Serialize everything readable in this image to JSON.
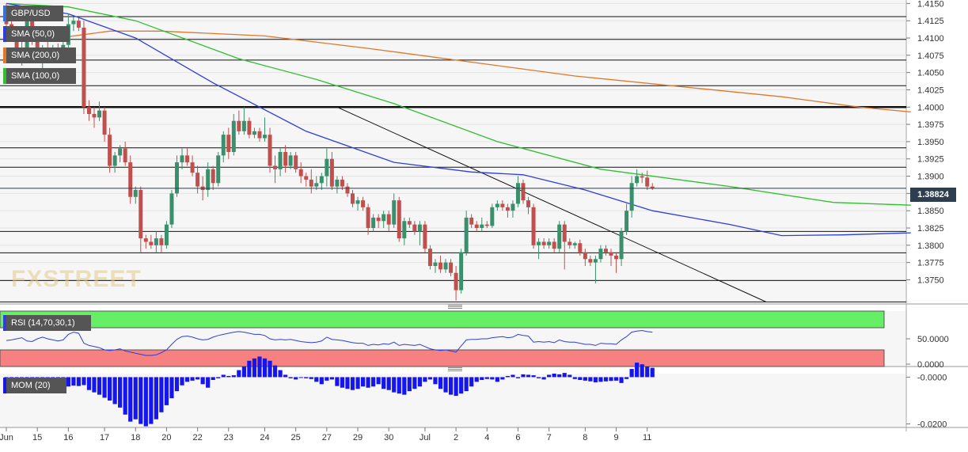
{
  "symbol": "GBP/USD",
  "legends": {
    "sma50": "SMA (50,0)",
    "sma200": "SMA (200,0)",
    "sma100": "SMA (100,0)",
    "rsi": "RSI (14,70,30,1)",
    "mom": "MOM (20)"
  },
  "watermark": "FXSTREET",
  "last_price": "1.38824",
  "colors": {
    "up": "#3a8f6c",
    "down": "#c0504d",
    "sma50": "#2f3ed9",
    "sma100": "#2fbf2f",
    "sma200": "#e0772a",
    "rsi_line": "#2f3ed9",
    "rsi_over": "#66ee66",
    "rsi_under": "#f78080",
    "mom_bar": "#1515ee",
    "badge": "#2c3e50"
  },
  "chart_data": [
    {
      "type": "candlestick",
      "title": "GBP/USD",
      "y_ticks": [
        "1.4150",
        "1.4125",
        "1.4100",
        "1.4075",
        "1.4050",
        "1.4025",
        "1.4000",
        "1.3975",
        "1.3950",
        "1.3925",
        "1.3900",
        "1.3875",
        "1.3850",
        "1.3825",
        "1.3800",
        "1.3775",
        "1.3750"
      ],
      "ylim": [
        1.3715,
        1.4155
      ],
      "x_ticks": [
        "Jun",
        "15",
        "16",
        "17",
        "18",
        "20",
        "22",
        "23",
        "24",
        "25",
        "27",
        "29",
        "30",
        "Jul",
        "2",
        "4",
        "6",
        "7",
        "8",
        "9",
        "11"
      ],
      "horizontal_levels": [
        1.4131,
        1.4098,
        1.4068,
        1.4031,
        1.4,
        1.3941,
        1.3913,
        1.382,
        1.3789,
        1.3749,
        1.3718
      ],
      "trend_line": [
        [
          1.4,
          64
        ],
        [
          1.3718,
          147
        ]
      ],
      "last_price": 1.38824,
      "candles_ohlc": [
        [
          1.4131,
          1.415,
          1.4105,
          1.412
        ],
        [
          1.412,
          1.413,
          1.4095,
          1.4102
        ],
        [
          1.4102,
          1.4115,
          1.408,
          1.4085
        ],
        [
          1.4085,
          1.41,
          1.406,
          1.4075
        ],
        [
          1.4075,
          1.414,
          1.407,
          1.413
        ],
        [
          1.413,
          1.414,
          1.409,
          1.4095
        ],
        [
          1.4095,
          1.41,
          1.4065,
          1.4075
        ],
        [
          1.4075,
          1.409,
          1.405,
          1.4085
        ],
        [
          1.4085,
          1.4095,
          1.4075,
          1.408
        ],
        [
          1.408,
          1.409,
          1.407,
          1.4083
        ],
        [
          1.4083,
          1.4092,
          1.4075,
          1.4078
        ],
        [
          1.4078,
          1.4095,
          1.407,
          1.409
        ],
        [
          1.409,
          1.4135,
          1.4085,
          1.412
        ],
        [
          1.412,
          1.413,
          1.411,
          1.4125
        ],
        [
          1.4125,
          1.413,
          1.411,
          1.4115
        ],
        [
          1.4115,
          1.4125,
          1.399,
          1.4
        ],
        [
          1.4,
          1.401,
          1.398,
          1.399
        ],
        [
          1.399,
          1.4,
          1.397,
          1.3985
        ],
        [
          1.3985,
          1.4008,
          1.398,
          1.3995
        ],
        [
          1.3995,
          1.4,
          1.395,
          1.396
        ],
        [
          1.396,
          1.397,
          1.3905,
          1.3915
        ],
        [
          1.3915,
          1.3935,
          1.3905,
          1.393
        ],
        [
          1.393,
          1.3945,
          1.392,
          1.394
        ],
        [
          1.394,
          1.395,
          1.3915,
          1.392
        ],
        [
          1.392,
          1.393,
          1.386,
          1.387
        ],
        [
          1.387,
          1.3885,
          1.386,
          1.388
        ],
        [
          1.388,
          1.3885,
          1.379,
          1.381
        ],
        [
          1.381,
          1.3815,
          1.3795,
          1.3805
        ],
        [
          1.3805,
          1.3815,
          1.3795,
          1.38
        ],
        [
          1.38,
          1.382,
          1.379,
          1.381
        ],
        [
          1.381,
          1.3815,
          1.379,
          1.38
        ],
        [
          1.38,
          1.3835,
          1.3795,
          1.383
        ],
        [
          1.383,
          1.388,
          1.3825,
          1.3875
        ],
        [
          1.3875,
          1.393,
          1.387,
          1.392
        ],
        [
          1.392,
          1.394,
          1.391,
          1.393
        ],
        [
          1.393,
          1.394,
          1.3915,
          1.392
        ],
        [
          1.392,
          1.393,
          1.39,
          1.3905
        ],
        [
          1.3905,
          1.3915,
          1.3875,
          1.3885
        ],
        [
          1.3885,
          1.39,
          1.3865,
          1.388
        ],
        [
          1.388,
          1.392,
          1.387,
          1.391
        ],
        [
          1.391,
          1.3915,
          1.388,
          1.389
        ],
        [
          1.389,
          1.3935,
          1.3885,
          1.393
        ],
        [
          1.393,
          1.3965,
          1.392,
          1.396
        ],
        [
          1.396,
          1.397,
          1.3925,
          1.3935
        ],
        [
          1.3935,
          1.399,
          1.393,
          1.398
        ],
        [
          1.398,
          1.3995,
          1.396,
          1.3965
        ],
        [
          1.3965,
          1.4,
          1.396,
          1.398
        ],
        [
          1.398,
          1.3985,
          1.3955,
          1.396
        ],
        [
          1.396,
          1.397,
          1.3955,
          1.3965
        ],
        [
          1.3965,
          1.397,
          1.395,
          1.3955
        ],
        [
          1.3955,
          1.3985,
          1.395,
          1.396
        ],
        [
          1.396,
          1.397,
          1.3905,
          1.3915
        ],
        [
          1.3915,
          1.393,
          1.389,
          1.391
        ],
        [
          1.391,
          1.394,
          1.39,
          1.3935
        ],
        [
          1.3935,
          1.3945,
          1.3905,
          1.3915
        ],
        [
          1.3915,
          1.3935,
          1.391,
          1.393
        ],
        [
          1.393,
          1.3935,
          1.3905,
          1.391
        ],
        [
          1.391,
          1.392,
          1.389,
          1.39
        ],
        [
          1.39,
          1.3905,
          1.3885,
          1.3895
        ],
        [
          1.3895,
          1.391,
          1.3875,
          1.3885
        ],
        [
          1.3885,
          1.39,
          1.388,
          1.389
        ],
        [
          1.389,
          1.3905,
          1.388,
          1.39
        ],
        [
          1.39,
          1.394,
          1.3885,
          1.3925
        ],
        [
          1.3925,
          1.3935,
          1.388,
          1.3885
        ],
        [
          1.3885,
          1.39,
          1.3875,
          1.3895
        ],
        [
          1.3895,
          1.39,
          1.388,
          1.3885
        ],
        [
          1.3885,
          1.389,
          1.387,
          1.3875
        ],
        [
          1.3875,
          1.388,
          1.3855,
          1.386
        ],
        [
          1.386,
          1.387,
          1.385,
          1.3865
        ],
        [
          1.3865,
          1.387,
          1.385,
          1.3855
        ],
        [
          1.3855,
          1.386,
          1.3815,
          1.3825
        ],
        [
          1.3825,
          1.3845,
          1.382,
          1.384
        ],
        [
          1.384,
          1.3845,
          1.3825,
          1.3835
        ],
        [
          1.3835,
          1.385,
          1.3825,
          1.3845
        ],
        [
          1.3845,
          1.385,
          1.382,
          1.383
        ],
        [
          1.383,
          1.3875,
          1.3825,
          1.3865
        ],
        [
          1.3865,
          1.387,
          1.3805,
          1.381
        ],
        [
          1.381,
          1.384,
          1.38,
          1.3835
        ],
        [
          1.3835,
          1.384,
          1.3825,
          1.383
        ],
        [
          1.383,
          1.3835,
          1.3815,
          1.382
        ],
        [
          1.382,
          1.3835,
          1.38,
          1.383
        ],
        [
          1.383,
          1.3835,
          1.379,
          1.3795
        ],
        [
          1.3795,
          1.38,
          1.3765,
          1.377
        ],
        [
          1.377,
          1.378,
          1.376,
          1.3775
        ],
        [
          1.3775,
          1.3785,
          1.376,
          1.3765
        ],
        [
          1.3765,
          1.378,
          1.376,
          1.3775
        ],
        [
          1.3775,
          1.378,
          1.3755,
          1.376
        ],
        [
          1.376,
          1.377,
          1.372,
          1.3735
        ],
        [
          1.3735,
          1.3795,
          1.373,
          1.379
        ],
        [
          1.379,
          1.385,
          1.3785,
          1.384
        ],
        [
          1.384,
          1.3845,
          1.3825,
          1.383
        ],
        [
          1.383,
          1.3835,
          1.382,
          1.3825
        ],
        [
          1.3825,
          1.384,
          1.382,
          1.383
        ],
        [
          1.383,
          1.3835,
          1.3825,
          1.3828
        ],
        [
          1.3828,
          1.386,
          1.3825,
          1.3855
        ],
        [
          1.3855,
          1.3865,
          1.385,
          1.386
        ],
        [
          1.386,
          1.3865,
          1.385,
          1.3855
        ],
        [
          1.3855,
          1.386,
          1.384,
          1.385
        ],
        [
          1.385,
          1.3865,
          1.384,
          1.386
        ],
        [
          1.386,
          1.39,
          1.3855,
          1.389
        ],
        [
          1.389,
          1.3895,
          1.386,
          1.3865
        ],
        [
          1.3865,
          1.387,
          1.3845,
          1.3855
        ],
        [
          1.3855,
          1.386,
          1.3795,
          1.38
        ],
        [
          1.38,
          1.381,
          1.378,
          1.3805
        ],
        [
          1.3805,
          1.381,
          1.3795,
          1.38
        ],
        [
          1.38,
          1.381,
          1.3795,
          1.3805
        ],
        [
          1.3805,
          1.381,
          1.379,
          1.3795
        ],
        [
          1.3795,
          1.3835,
          1.379,
          1.383
        ],
        [
          1.383,
          1.3835,
          1.3765,
          1.3805
        ],
        [
          1.3805,
          1.381,
          1.3795,
          1.38
        ],
        [
          1.38,
          1.3805,
          1.3795,
          1.3803
        ],
        [
          1.3803,
          1.3808,
          1.3785,
          1.379
        ],
        [
          1.379,
          1.3795,
          1.377,
          1.378
        ],
        [
          1.378,
          1.3785,
          1.377,
          1.3775
        ],
        [
          1.3775,
          1.3785,
          1.3745,
          1.378
        ],
        [
          1.378,
          1.38,
          1.3775,
          1.3795
        ],
        [
          1.3795,
          1.38,
          1.3785,
          1.379
        ],
        [
          1.379,
          1.3795,
          1.377,
          1.3785
        ],
        [
          1.3785,
          1.379,
          1.376,
          1.378
        ],
        [
          1.378,
          1.3825,
          1.377,
          1.382
        ],
        [
          1.382,
          1.386,
          1.3815,
          1.385
        ],
        [
          1.385,
          1.39,
          1.384,
          1.389
        ],
        [
          1.389,
          1.391,
          1.3885,
          1.39
        ],
        [
          1.39,
          1.3905,
          1.389,
          1.3898
        ],
        [
          1.3898,
          1.3908,
          1.388,
          1.3885
        ],
        [
          1.3885,
          1.389,
          1.388,
          1.38824
        ]
      ],
      "sma50": [
        [
          0,
          1.415
        ],
        [
          12,
          1.4135
        ],
        [
          25,
          1.41
        ],
        [
          40,
          1.4035
        ],
        [
          58,
          1.3965
        ],
        [
          75,
          1.392
        ],
        [
          90,
          1.3906
        ],
        [
          100,
          1.3902
        ],
        [
          112,
          1.388
        ],
        [
          125,
          1.385
        ],
        [
          140,
          1.383
        ],
        [
          150,
          1.3814
        ],
        [
          162,
          1.3815
        ],
        [
          175,
          1.3818
        ]
      ],
      "sma100": [
        [
          0,
          1.415
        ],
        [
          12,
          1.4145
        ],
        [
          25,
          1.4125
        ],
        [
          45,
          1.407
        ],
        [
          60,
          1.404
        ],
        [
          75,
          1.4005
        ],
        [
          95,
          1.395
        ],
        [
          115,
          1.391
        ],
        [
          140,
          1.3885
        ],
        [
          160,
          1.3862
        ],
        [
          175,
          1.3858
        ]
      ],
      "sma200": [
        [
          0,
          1.41
        ],
        [
          12,
          1.4102
        ],
        [
          20,
          1.411
        ],
        [
          30,
          1.411
        ],
        [
          50,
          1.4103
        ],
        [
          70,
          1.4085
        ],
        [
          90,
          1.4065
        ],
        [
          110,
          1.4045
        ],
        [
          130,
          1.403
        ],
        [
          150,
          1.4015
        ],
        [
          165,
          1.4
        ],
        [
          175,
          1.3993
        ]
      ]
    },
    {
      "type": "line",
      "title": "RSI (14,70,30,1)",
      "y_ticks": [
        "50.0000",
        "0.0000"
      ],
      "zones": {
        "overbought": 70,
        "oversold": 30
      },
      "values": [
        47,
        48,
        50,
        52,
        46,
        45,
        50,
        53,
        50,
        48,
        46,
        48,
        58,
        62,
        60,
        42,
        38,
        36,
        34,
        30,
        29,
        30,
        32,
        28,
        26,
        24,
        22,
        20,
        20,
        21,
        25,
        30,
        40,
        49,
        54,
        55,
        53,
        50,
        48,
        49,
        53,
        56,
        58,
        60,
        62,
        63,
        62,
        60,
        58,
        58,
        56,
        50,
        48,
        49,
        48,
        49,
        47,
        45,
        44,
        43,
        44,
        46,
        53,
        49,
        48,
        47,
        45,
        43,
        42,
        42,
        38,
        40,
        39,
        41,
        40,
        44,
        38,
        40,
        39,
        38,
        40,
        36,
        32,
        30,
        29,
        30,
        28,
        26,
        37,
        48,
        49,
        49,
        50,
        50,
        52,
        53,
        54,
        52,
        53,
        58,
        56,
        55,
        44,
        45,
        44,
        45,
        43,
        48,
        45,
        44,
        44,
        42,
        40,
        40,
        38,
        42,
        41,
        41,
        40,
        48,
        54,
        62,
        64,
        65,
        63,
        62
      ]
    },
    {
      "type": "bar",
      "title": "MOM (20)",
      "y_ticks": [
        "-0.0000",
        "-0.0200"
      ],
      "values": [
        -0.0012,
        -0.0006,
        -0.002,
        -0.0008,
        -0.001,
        -0.0006,
        -0.0018,
        -0.0016,
        -0.0005,
        -0.0018,
        -0.0012,
        -0.0034,
        -0.004,
        -0.0036,
        -0.0038,
        -0.0034,
        -0.0055,
        -0.0065,
        -0.0075,
        -0.0088,
        -0.01,
        -0.0115,
        -0.013,
        -0.016,
        -0.019,
        -0.018,
        -0.02,
        -0.021,
        -0.02,
        -0.018,
        -0.015,
        -0.012,
        -0.009,
        -0.006,
        -0.0035,
        -0.002,
        -0.0015,
        -0.001,
        -0.003,
        -0.0045,
        -0.0012,
        -0.0005,
        0.001,
        0.0005,
        0.0008,
        0.003,
        0.0045,
        0.007,
        0.008,
        0.0088,
        0.008,
        0.007,
        0.005,
        0.003,
        0.001,
        -0.0005,
        -0.001,
        -0.0003,
        -0.0005,
        -0.0008,
        -0.002,
        -0.003,
        -0.0015,
        -0.001,
        -0.0038,
        -0.0045,
        -0.005,
        -0.0055,
        -0.005,
        -0.004,
        -0.0045,
        -0.004,
        -0.003,
        -0.005,
        -0.0055,
        -0.0065,
        -0.007,
        -0.0075,
        -0.006,
        -0.005,
        -0.004,
        -0.002,
        -0.001,
        -0.003,
        -0.005,
        -0.0065,
        -0.0075,
        -0.008,
        -0.007,
        -0.006,
        -0.004,
        -0.002,
        -0.0012,
        -0.0008,
        -0.001,
        -0.002,
        -0.001,
        0.0005,
        0.001,
        -0.0005,
        0.0012,
        0.001,
        0.0008,
        -0.0005,
        -0.001,
        0.001,
        0.0015,
        0.0012,
        0.0018,
        0.001,
        -0.0008,
        -0.0012,
        -0.0015,
        -0.0018,
        -0.0022,
        -0.002,
        -0.0018,
        -0.0016,
        -0.0015,
        -0.0025,
        -0.0008,
        0.0035,
        0.0062,
        0.0055,
        0.0045,
        0.004
      ]
    }
  ]
}
